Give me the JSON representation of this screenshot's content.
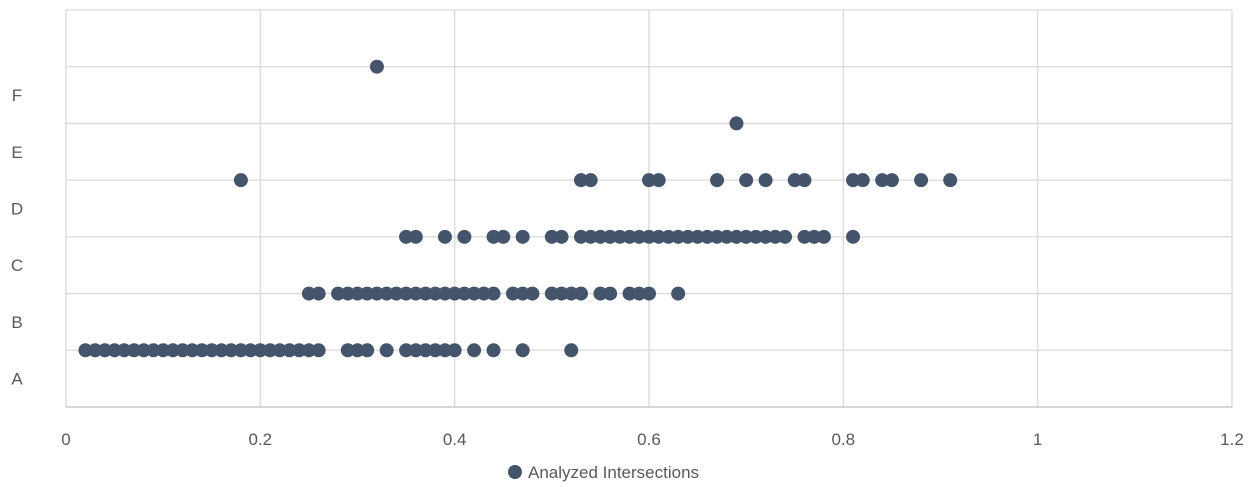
{
  "chart_data": {
    "type": "scatter",
    "title": "",
    "xlabel": "",
    "ylabel": "",
    "xlim": [
      0,
      1.2
    ],
    "x_ticks": [
      "0",
      "0.2",
      "0.4",
      "0.6",
      "0.8",
      "1",
      "1.2"
    ],
    "y_categories": [
      "A",
      "B",
      "C",
      "D",
      "E",
      "F"
    ],
    "grid": true,
    "legend_position": "bottom",
    "series": [
      {
        "name": "Analyzed Intersections",
        "color": "#44546a",
        "points": [
          {
            "y": "A",
            "x": [
              0.02,
              0.03,
              0.04,
              0.05,
              0.06,
              0.07,
              0.08,
              0.09,
              0.1,
              0.11,
              0.12,
              0.13,
              0.14,
              0.15,
              0.16,
              0.17,
              0.18,
              0.19,
              0.2,
              0.21,
              0.22,
              0.23,
              0.24,
              0.25,
              0.26,
              0.29,
              0.3,
              0.31,
              0.33,
              0.35,
              0.36,
              0.37,
              0.38,
              0.39,
              0.4,
              0.42,
              0.44,
              0.47,
              0.52
            ]
          },
          {
            "y": "B",
            "x": [
              0.25,
              0.26,
              0.28,
              0.29,
              0.3,
              0.31,
              0.32,
              0.33,
              0.34,
              0.35,
              0.36,
              0.37,
              0.38,
              0.39,
              0.4,
              0.41,
              0.42,
              0.43,
              0.44,
              0.46,
              0.47,
              0.48,
              0.5,
              0.51,
              0.52,
              0.53,
              0.55,
              0.56,
              0.58,
              0.59,
              0.6,
              0.63
            ]
          },
          {
            "y": "C",
            "x": [
              0.35,
              0.36,
              0.39,
              0.41,
              0.44,
              0.45,
              0.47,
              0.5,
              0.51,
              0.53,
              0.54,
              0.55,
              0.56,
              0.57,
              0.58,
              0.59,
              0.6,
              0.61,
              0.62,
              0.63,
              0.64,
              0.65,
              0.66,
              0.67,
              0.68,
              0.69,
              0.7,
              0.71,
              0.72,
              0.73,
              0.74,
              0.76,
              0.77,
              0.78,
              0.81
            ]
          },
          {
            "y": "D",
            "x": [
              0.18,
              0.53,
              0.54,
              0.6,
              0.61,
              0.67,
              0.7,
              0.72,
              0.75,
              0.76,
              0.81,
              0.82,
              0.84,
              0.85,
              0.88,
              0.91
            ]
          },
          {
            "y": "E",
            "x": [
              0.69
            ]
          },
          {
            "y": "F",
            "x": [
              0.32
            ]
          }
        ]
      }
    ]
  }
}
